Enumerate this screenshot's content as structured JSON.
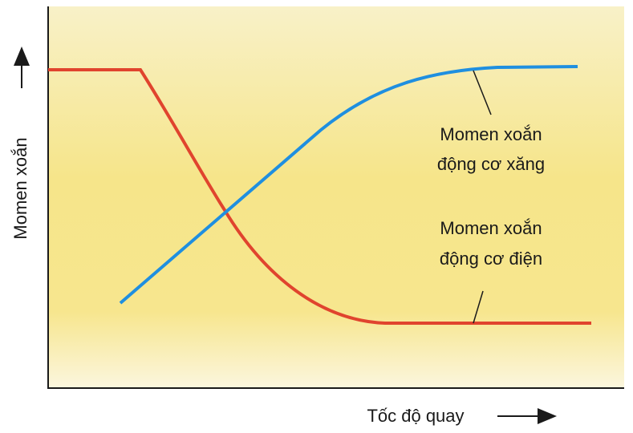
{
  "axes": {
    "y_label": "Momen xoắn",
    "x_label": "Tốc độ quay"
  },
  "annotations": [
    {
      "lines": [
        "Momen xoắn",
        "động cơ xăng"
      ]
    },
    {
      "lines": [
        "Momen xoắn",
        "động cơ điện"
      ]
    }
  ]
}
